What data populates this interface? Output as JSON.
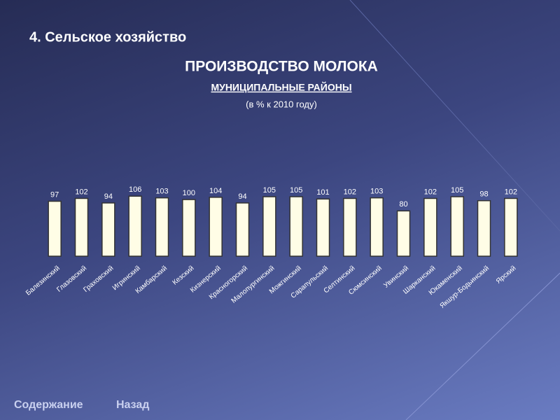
{
  "heading": "4. Сельское хозяйство",
  "nav": [
    "Содержание",
    "Назад"
  ],
  "chart_data": {
    "type": "bar",
    "title": "ПРОИЗВОДСТВО МОЛОКА",
    "subtitle": "МУНИЦИПАЛЬНЫЕ РАЙОНЫ",
    "unit_note": "(в % к 2010 году)",
    "categories": [
      "Балезинский",
      "Глазовский",
      "Граховский",
      "Игринский",
      "Камбарский",
      "Кезский",
      "Кизнерский",
      "Красногорский",
      "Малопургинский",
      "Можгинский",
      "Сарапульский",
      "Селтинский",
      "Сюмсинский",
      "Увинский",
      "Шарканский",
      "Юкаменский",
      "Якшур-Бодьинский",
      "Ярский"
    ],
    "values": [
      97,
      102,
      94,
      106,
      103,
      100,
      104,
      94,
      105,
      105,
      101,
      102,
      103,
      80,
      102,
      105,
      98,
      102
    ],
    "color": "#fffde6",
    "ylim": [
      0,
      110
    ]
  }
}
